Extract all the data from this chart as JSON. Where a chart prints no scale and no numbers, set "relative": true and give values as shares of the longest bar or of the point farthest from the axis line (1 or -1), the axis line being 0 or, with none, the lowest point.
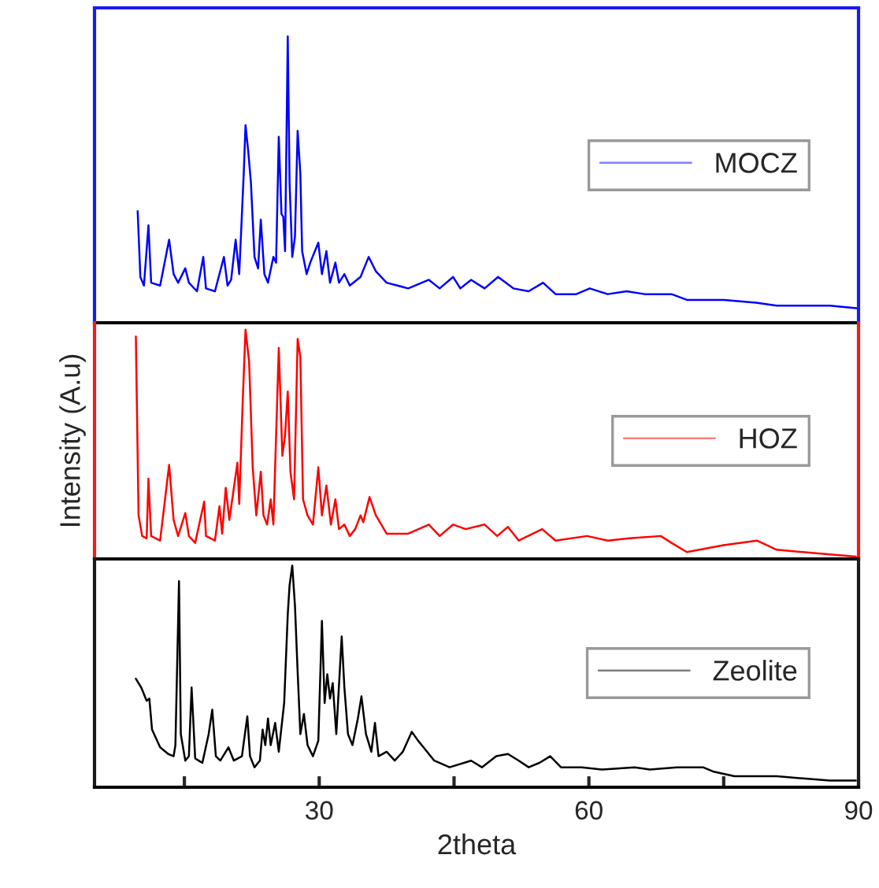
{
  "chart_data": [
    {
      "type": "line",
      "relative": true,
      "xlim": [
        5,
        90
      ],
      "tick_labels": false,
      "legend": "right",
      "x": [
        9.8,
        10.1,
        10.5,
        11.0,
        11.3,
        12.3,
        13.3,
        13.8,
        14.3,
        15.1,
        15.5,
        16.4,
        17.1,
        17.4,
        18.4,
        19.4,
        19.8,
        20.2,
        20.7,
        21.1,
        21.6,
        21.8,
        22.1,
        22.4,
        22.8,
        23.2,
        23.5,
        23.9,
        24.3,
        24.9,
        25.2,
        25.5,
        25.8,
        26.0,
        26.2,
        26.5,
        26.7,
        27.0,
        27.3,
        27.6,
        27.9,
        28.1,
        28.6,
        29.0,
        29.9,
        30.3,
        30.8,
        31.2,
        31.8,
        32.2,
        32.8,
        33.4,
        34.6,
        35.5,
        36.3,
        37.5,
        39.9,
        42.2,
        43.4,
        44.9,
        45.7,
        46.9,
        48.4,
        49.9,
        51.6,
        53.3,
        54.9,
        56.3,
        58.6,
        60.1,
        62.1,
        64.2,
        66.2,
        69.2,
        70.9,
        75.0,
        78.6,
        80.9,
        83.8,
        86.8,
        90.0
      ],
      "series": [
        {
          "name": "MOCZ",
          "color": "#0000ff",
          "values": [
            0.39,
            0.16,
            0.13,
            0.34,
            0.14,
            0.13,
            0.29,
            0.17,
            0.14,
            0.19,
            0.14,
            0.11,
            0.23,
            0.12,
            0.11,
            0.23,
            0.13,
            0.15,
            0.29,
            0.17,
            0.52,
            0.69,
            0.6,
            0.49,
            0.23,
            0.19,
            0.36,
            0.17,
            0.14,
            0.23,
            0.21,
            0.65,
            0.38,
            0.37,
            0.25,
            1,
            0.49,
            0.23,
            0.3,
            0.67,
            0.52,
            0.25,
            0.17,
            0.21,
            0.28,
            0.17,
            0.25,
            0.14,
            0.21,
            0.14,
            0.17,
            0.13,
            0.16,
            0.23,
            0.18,
            0.14,
            0.12,
            0.15,
            0.12,
            0.16,
            0.12,
            0.15,
            0.12,
            0.16,
            0.12,
            0.11,
            0.14,
            0.1,
            0.1,
            0.12,
            0.1,
            0.11,
            0.1,
            0.1,
            0.08,
            0.08,
            0.07,
            0.06,
            0.06,
            0.06,
            0.05
          ]
        }
      ]
    },
    {
      "type": "line",
      "relative": true,
      "xlim": [
        5,
        90
      ],
      "tick_labels": false,
      "legend": "right",
      "ylabel": "Intensity (A.u)",
      "x": [
        9.6,
        9.9,
        10.3,
        10.8,
        11.0,
        11.3,
        12.3,
        13.3,
        13.8,
        14.3,
        15.1,
        15.5,
        16.2,
        17.2,
        17.4,
        18.4,
        18.9,
        19.2,
        19.6,
        20.0,
        20.9,
        21.1,
        21.5,
        21.8,
        22.2,
        22.6,
        23.0,
        23.5,
        23.8,
        24.2,
        24.6,
        24.9,
        25.5,
        25.9,
        26.2,
        26.5,
        26.8,
        27.2,
        27.6,
        27.9,
        28.2,
        28.7,
        29.3,
        29.9,
        30.3,
        30.8,
        31.3,
        31.8,
        32.2,
        32.8,
        33.4,
        34.0,
        34.6,
        34.9,
        35.6,
        36.3,
        37.5,
        39.9,
        42.2,
        43.4,
        44.9,
        46.3,
        48.4,
        49.8,
        51.0,
        52.2,
        54.8,
        56.3,
        59.8,
        62.1,
        64.5,
        68.0,
        69.2,
        70.9,
        75.0,
        78.7,
        80.9,
        83.8,
        86.8,
        89.7
      ],
      "series": [
        {
          "name": "HOZ",
          "color": "#ff0000",
          "values": [
            0.97,
            0.19,
            0.1,
            0.09,
            0.35,
            0.1,
            0.08,
            0.41,
            0.17,
            0.1,
            0.2,
            0.1,
            0.07,
            0.25,
            0.1,
            0.08,
            0.23,
            0.11,
            0.31,
            0.17,
            0.42,
            0.24,
            0.7,
            1,
            0.86,
            0.4,
            0.19,
            0.38,
            0.19,
            0.15,
            0.26,
            0.15,
            0.92,
            0.45,
            0.54,
            0.73,
            0.38,
            0.26,
            0.96,
            0.88,
            0.26,
            0.19,
            0.15,
            0.4,
            0.19,
            0.32,
            0.15,
            0.26,
            0.13,
            0.15,
            0.1,
            0.13,
            0.19,
            0.16,
            0.27,
            0.19,
            0.11,
            0.11,
            0.15,
            0.1,
            0.15,
            0.13,
            0.15,
            0.1,
            0.14,
            0.08,
            0.13,
            0.08,
            0.1,
            0.08,
            0.09,
            0.1,
            0.07,
            0.03,
            0.06,
            0.08,
            0.04,
            0.03,
            0.02,
            0.01
          ]
        }
      ]
    },
    {
      "type": "line",
      "relative": true,
      "xlim": [
        5,
        90
      ],
      "xticks": [
        {
          "value": 15,
          "label": null
        },
        30,
        {
          "value": 45,
          "label": null
        },
        60,
        {
          "value": 75,
          "label": null
        },
        90
      ],
      "tick_labels": "x",
      "legend": "right",
      "xlabel": "2theta",
      "x": [
        9.6,
        10.2,
        10.8,
        11.1,
        11.4,
        12.3,
        13.2,
        13.8,
        14.0,
        14.4,
        14.6,
        15.1,
        15.5,
        15.8,
        16.2,
        17.0,
        17.7,
        18.1,
        18.5,
        19.0,
        19.9,
        20.5,
        21.4,
        22.0,
        22.3,
        22.8,
        23.4,
        23.7,
        24.0,
        24.3,
        24.6,
        25.1,
        25.5,
        26.1,
        26.5,
        26.7,
        27.0,
        27.3,
        27.6,
        27.9,
        28.3,
        28.7,
        29.3,
        29.9,
        30.3,
        30.6,
        30.9,
        31.2,
        31.5,
        31.9,
        32.5,
        32.8,
        33.2,
        33.7,
        34.3,
        34.7,
        35.2,
        35.8,
        36.2,
        36.6,
        37.5,
        38.4,
        39.3,
        40.3,
        41.0,
        41.6,
        42.8,
        44.5,
        46.9,
        48.1,
        49.7,
        51.0,
        52.2,
        53.3,
        54.5,
        55.7,
        56.9,
        59.2,
        61.5,
        65.1,
        66.8,
        69.8,
        72.7,
        73.9,
        76.2,
        78.6,
        80.9,
        83.8,
        86.8,
        89.7
      ],
      "series": [
        {
          "name": "Zeolite",
          "color": "#000000",
          "values": [
            0.49,
            0.45,
            0.39,
            0.4,
            0.26,
            0.18,
            0.15,
            0.14,
            0.19,
            0.93,
            0.24,
            0.12,
            0.14,
            0.45,
            0.13,
            0.11,
            0.24,
            0.35,
            0.14,
            0.12,
            0.18,
            0.12,
            0.14,
            0.32,
            0.14,
            0.09,
            0.12,
            0.26,
            0.19,
            0.31,
            0.19,
            0.29,
            0.16,
            0.38,
            0.78,
            0.91,
            1,
            0.82,
            0.52,
            0.24,
            0.33,
            0.19,
            0.14,
            0.21,
            0.75,
            0.38,
            0.51,
            0.4,
            0.47,
            0.24,
            0.68,
            0.45,
            0.24,
            0.19,
            0.31,
            0.41,
            0.24,
            0.16,
            0.29,
            0.14,
            0.16,
            0.12,
            0.16,
            0.25,
            0.21,
            0.18,
            0.12,
            0.09,
            0.12,
            0.09,
            0.14,
            0.15,
            0.12,
            0.09,
            0.11,
            0.14,
            0.09,
            0.09,
            0.08,
            0.09,
            0.08,
            0.09,
            0.09,
            0.07,
            0.05,
            0.05,
            0.05,
            0.04,
            0.03,
            0.03
          ]
        }
      ]
    }
  ]
}
